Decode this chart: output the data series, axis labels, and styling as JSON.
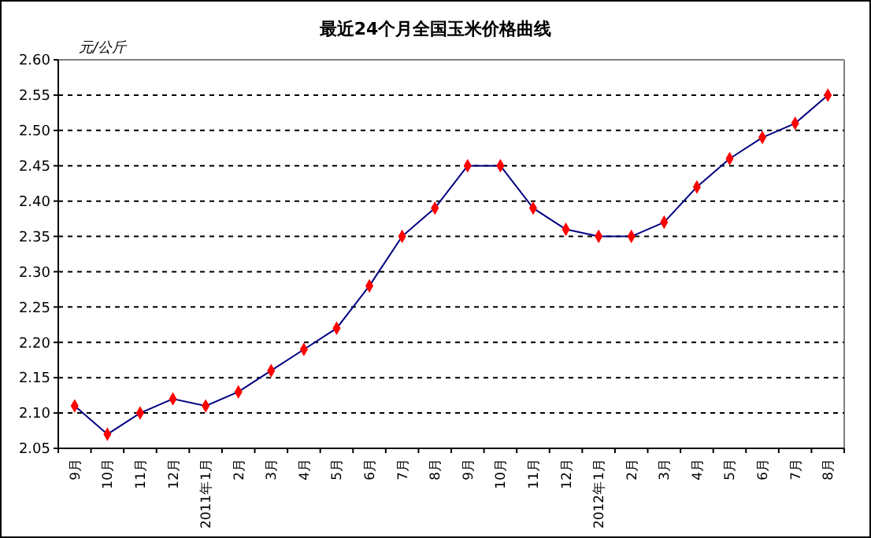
{
  "chart_data": {
    "type": "line",
    "title": "最近24个月全国玉米价格曲线",
    "ylabel": "元/公斤",
    "categories": [
      "9月",
      "10月",
      "11月",
      "12月",
      "2011年1月",
      "2月",
      "3月",
      "4月",
      "5月",
      "6月",
      "7月",
      "8月",
      "9月",
      "10月",
      "11月",
      "12月",
      "2012年1月",
      "2月",
      "3月",
      "4月",
      "5月",
      "6月",
      "7月",
      "8月"
    ],
    "series": [
      {
        "color": "#000080",
        "colors": [
          "#ff0000",
          "#ff0000",
          "#ff0000",
          "#ff0000",
          "#ff0000",
          "#ff0000",
          "#ff0000",
          "#ff0000",
          "#ff0000",
          "#ff0000",
          "#ff0000",
          "#ff0000",
          "#ff0000",
          "#ff0000",
          "#ff0000",
          "#ff0000",
          "#ff0000",
          "#ff0000",
          "#ff0000",
          "#ff0000",
          "#ff0000",
          "#ff0000",
          "#ff0000",
          "#ff0000"
        ],
        "values": [
          2.11,
          2.07,
          2.1,
          2.12,
          2.11,
          2.13,
          2.16,
          2.19,
          2.22,
          2.28,
          2.35,
          2.39,
          2.45,
          2.45,
          2.39,
          2.36,
          2.35,
          2.35,
          2.37,
          2.42,
          2.46,
          2.49,
          2.51,
          2.55
        ]
      }
    ],
    "ylim": [
      2.05,
      2.6
    ],
    "yticks": [
      {
        "value": 2.05,
        "label": "2.05"
      },
      {
        "value": 2.1,
        "label": "2.10"
      },
      {
        "value": 2.15,
        "label": "2.15"
      },
      {
        "value": 2.2,
        "label": "2.20"
      },
      {
        "value": 2.25,
        "label": "2.25"
      },
      {
        "value": 2.3,
        "label": "2.30"
      },
      {
        "value": 2.35,
        "label": "2.35"
      },
      {
        "value": 2.4,
        "label": "2.40"
      },
      {
        "value": 2.45,
        "label": "2.45"
      },
      {
        "value": 2.5,
        "label": "2.50"
      },
      {
        "value": 2.55,
        "label": "2.55"
      },
      {
        "value": 2.6,
        "label": "2.60"
      }
    ],
    "grid": "y",
    "marker": "diamond",
    "line_style": "solid"
  }
}
